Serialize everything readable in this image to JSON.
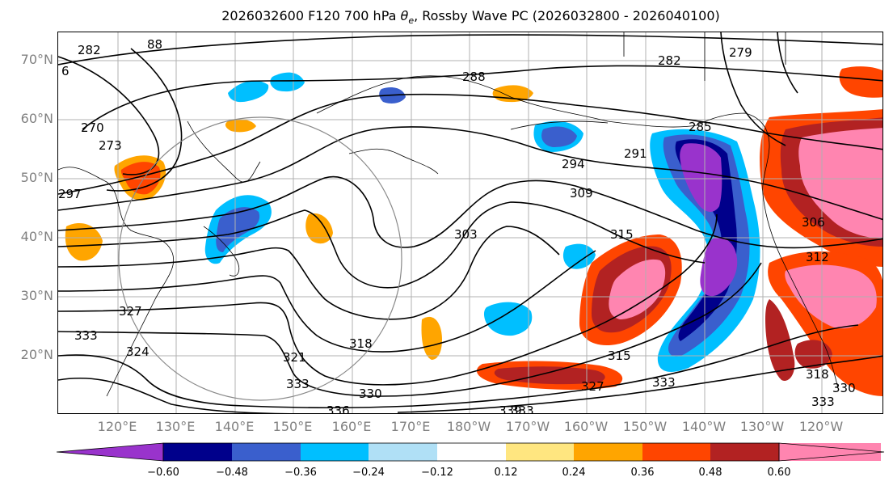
{
  "title": "2026032600 F120 700 hPa θe, Rossby Wave PC (2026032800 - 2026040100)",
  "title_parts": {
    "before": "2026032600 F120 700 hPa ",
    "theta": "θ",
    "sub": "e",
    "after": ", Rossby Wave PC (2026032800 - 2026040100)"
  },
  "map": {
    "lat_labels": [
      "70°N",
      "60°N",
      "50°N",
      "40°N",
      "30°N",
      "20°N"
    ],
    "lon_labels": [
      "120°E",
      "130°E",
      "140°E",
      "150°E",
      "160°E",
      "170°E",
      "180°W",
      "170°W",
      "160°W",
      "150°W",
      "140°W",
      "130°W",
      "120°W"
    ],
    "contour_labels": [
      "282",
      "288",
      "282",
      "279",
      "270",
      "273",
      "297",
      "294",
      "291",
      "285",
      "309",
      "303",
      "315",
      "306",
      "312",
      "327",
      "324",
      "321",
      "318",
      "330",
      "333",
      "336",
      "339",
      "315",
      "327",
      "333",
      "318",
      "330",
      "333",
      "6",
      "88",
      "333",
      "333"
    ]
  },
  "colorbar": {
    "ticks": [
      "−0.60",
      "−0.48",
      "−0.36",
      "−0.24",
      "−0.12",
      "0.12",
      "0.24",
      "0.36",
      "0.48",
      "0.60"
    ],
    "colors": [
      "#9933cc",
      "#00008b",
      "#3a5fcd",
      "#00bfff",
      "#b0e0f6",
      "#ffffff",
      "#ffe680",
      "#ffa500",
      "#ff4500",
      "#b22222",
      "#ff85b0",
      "#ff85b0"
    ]
  }
}
